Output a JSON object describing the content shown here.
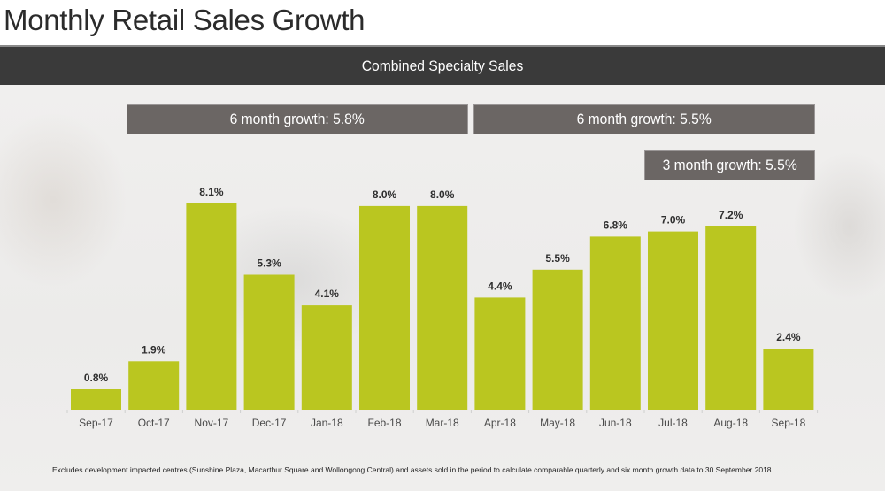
{
  "page": {
    "title": "Monthly Retail Sales Growth",
    "section_header": "Combined Specialty Sales",
    "footnote": "Excludes development impacted centres (Sunshine Plaza, Macarthur Square and Wollongong Central) and assets sold in the period to calculate comparable quarterly and six month growth data to 30 September 2018"
  },
  "summary_boxes": [
    {
      "label": "6 month growth: 5.8%",
      "period": "Oct-17 to Mar-18"
    },
    {
      "label": "6 month growth: 5.5%",
      "period": "Apr-18 to Sep-18"
    },
    {
      "label": "3 month growth: 5.5%",
      "period": "Jul-18 to Sep-18"
    }
  ],
  "chart_data": {
    "type": "bar",
    "title": "Combined Specialty Sales",
    "xlabel": "",
    "ylabel": "",
    "categories": [
      "Sep-17",
      "Oct-17",
      "Nov-17",
      "Dec-17",
      "Jan-18",
      "Feb-18",
      "Mar-18",
      "Apr-18",
      "May-18",
      "Jun-18",
      "Jul-18",
      "Aug-18",
      "Sep-18"
    ],
    "values": [
      0.8,
      1.9,
      8.1,
      5.3,
      4.1,
      8.0,
      8.0,
      4.4,
      5.5,
      6.8,
      7.0,
      7.2,
      2.4
    ],
    "value_labels": [
      "0.8%",
      "1.9%",
      "8.1%",
      "5.3%",
      "4.1%",
      "8.0%",
      "8.0%",
      "4.4%",
      "5.5%",
      "6.8%",
      "7.0%",
      "7.2%",
      "2.4%"
    ],
    "units": "%",
    "ylim": [
      0,
      8.1
    ],
    "grid": false,
    "legend": "none",
    "bar_color": "#bac620",
    "annotations": [
      "6 month growth: 5.8%",
      "6 month growth: 5.5%",
      "3 month growth: 5.5%"
    ]
  }
}
